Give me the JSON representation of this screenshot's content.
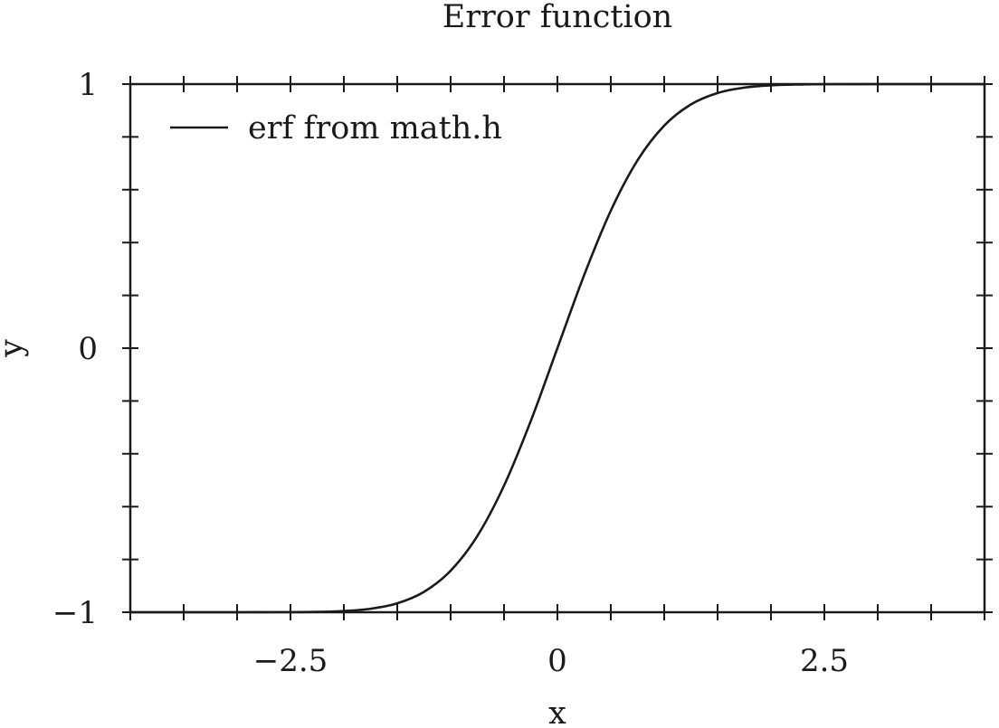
{
  "chart_data": {
    "type": "line",
    "title": "Error function",
    "xlabel": "x",
    "ylabel": "y",
    "xlim": [
      -4,
      4
    ],
    "ylim": [
      -1,
      1
    ],
    "x_ticks": [
      -2.5,
      0,
      2.5
    ],
    "x_tick_labels": [
      "−2.5",
      "0",
      "2.5"
    ],
    "y_ticks": [
      -1,
      0,
      1
    ],
    "y_tick_labels": [
      "−1",
      "0",
      "1"
    ],
    "x_minor_step": 0.5,
    "y_minor_step": 0.2,
    "grid": false,
    "legend_position": "top-left",
    "series": [
      {
        "name": "erf from math.h",
        "color": "#1a1a1a",
        "x": [
          -4,
          -3.5,
          -3,
          -2.5,
          -2.25,
          -2,
          -1.75,
          -1.5,
          -1.25,
          -1,
          -0.75,
          -0.5,
          -0.25,
          0,
          0.25,
          0.5,
          0.75,
          1,
          1.25,
          1.5,
          1.75,
          2,
          2.25,
          2.5,
          3,
          3.5,
          4
        ],
        "y": [
          -1.0,
          -1.0,
          -0.99998,
          -0.99959,
          -0.99854,
          -0.99532,
          -0.98667,
          -0.96611,
          -0.9229,
          -0.8427,
          -0.71116,
          -0.5205,
          -0.27633,
          0.0,
          0.27633,
          0.5205,
          0.71116,
          0.8427,
          0.9229,
          0.96611,
          0.98667,
          0.99532,
          0.99854,
          0.99959,
          0.99998,
          1.0,
          1.0
        ]
      }
    ]
  }
}
